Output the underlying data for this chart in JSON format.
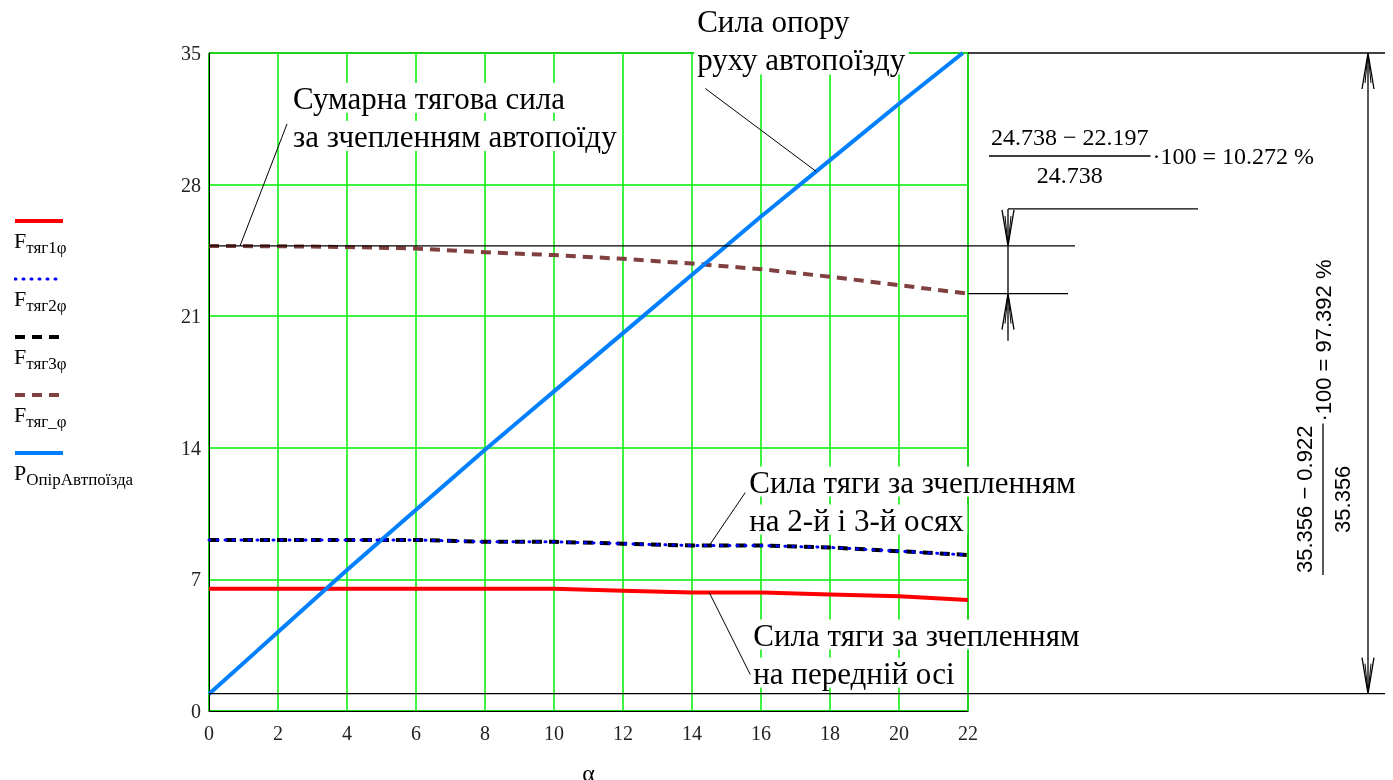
{
  "chart_data": {
    "type": "line",
    "xlabel": "α",
    "xlim": [
      0,
      22
    ],
    "xticks": [
      0,
      2,
      4,
      6,
      8,
      10,
      12,
      14,
      16,
      18,
      20,
      22
    ],
    "ylim": [
      0,
      35
    ],
    "yticks": [
      0,
      7,
      14,
      21,
      28,
      35
    ],
    "grid": true,
    "legend": "left",
    "x": [
      0,
      2,
      4,
      6,
      8,
      10,
      12,
      14,
      16,
      18,
      20,
      22
    ],
    "series": [
      {
        "name": "F$_{тяг1φ}$",
        "color": "#ff0000",
        "line_style": "solid",
        "values": [
          6.5,
          6.5,
          6.5,
          6.5,
          6.5,
          6.5,
          6.4,
          6.3,
          6.3,
          6.2,
          6.1,
          5.9
        ]
      },
      {
        "name": "F$_{тяг2φ}$",
        "color": "#0000ff",
        "line_style": "dotted",
        "values": [
          9.1,
          9.1,
          9.1,
          9.1,
          9.0,
          9.0,
          8.9,
          8.8,
          8.8,
          8.7,
          8.5,
          8.3
        ]
      },
      {
        "name": "F$_{тяг3φ}$",
        "color": "#000000",
        "line_style": "dashed",
        "values": [
          9.1,
          9.1,
          9.1,
          9.1,
          9.0,
          9.0,
          8.9,
          8.8,
          8.8,
          8.7,
          8.5,
          8.3
        ]
      },
      {
        "name": "F$_{тяг_φ}$",
        "color": "#804040",
        "line_style": "dashed",
        "values": [
          24.74,
          24.72,
          24.68,
          24.6,
          24.4,
          24.25,
          24.05,
          23.8,
          23.5,
          23.1,
          22.65,
          22.2
        ]
      },
      {
        "name": "P$_{ОпірАвтпоїзда}$",
        "color": "#0080ff",
        "line_style": "solid",
        "x": [
          0,
          2,
          4,
          6,
          8,
          10,
          12,
          14,
          16,
          18,
          20,
          21.85
        ],
        "values": [
          0.9,
          4.2,
          7.5,
          10.7,
          13.9,
          17.0,
          20.1,
          23.2,
          26.3,
          29.3,
          32.3,
          35
        ]
      }
    ],
    "ref_lines": [
      {
        "axis": "y",
        "value": 24.738,
        "color": "#000000"
      },
      {
        "axis": "y",
        "value": 0.922,
        "color": "#000000"
      }
    ],
    "annotations": [
      {
        "text": "Сумарна тягова сила\nза зчепленням автопоїду",
        "x": 0.9,
        "y": 24.74
      },
      {
        "text": "Сила опору\nруху автопоїзду",
        "x": 17.6,
        "y": 28.7
      },
      {
        "text": "Сила тяги за зчепленням\nна 2-й і 3-й осях",
        "x": 14.5,
        "y": 8.8
      },
      {
        "text": "Сила тяги за зчепленням\nна передній осі",
        "x": 14.5,
        "y": 6.3
      },
      "24.738 − 22.197\n24.738\n·100 = 10.272 %",
      "35.356 − 0.922\n35.356\n·100 = 97.392 %"
    ]
  }
}
